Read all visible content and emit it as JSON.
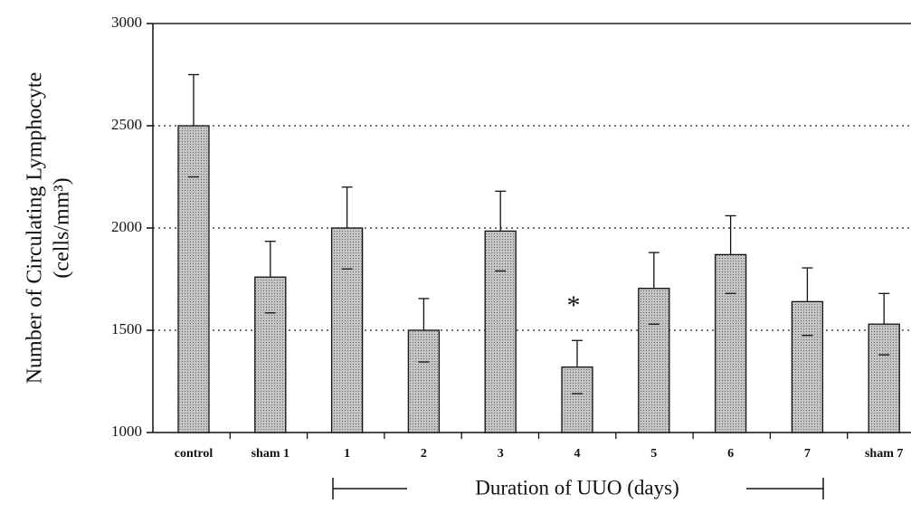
{
  "chart_data": {
    "type": "bar",
    "ylabel": [
      "Number of Circulating Lymphocyte",
      "(cells/mm³)"
    ],
    "xgroup_label": "Duration of UUO (days)",
    "annotation": "*",
    "categories": [
      "control",
      "sham 1",
      "1",
      "2",
      "3",
      "4",
      "5",
      "6",
      "7",
      "sham 7"
    ],
    "values": [
      2500,
      1760,
      2000,
      1500,
      1985,
      1320,
      1705,
      1870,
      1640,
      1530
    ],
    "errors": [
      250,
      175,
      200,
      155,
      195,
      130,
      175,
      190,
      165,
      150
    ],
    "color": "#c4c4c4",
    "ylim": [
      1000,
      3000
    ],
    "yticks": [
      1000,
      1500,
      2000,
      2500,
      3000
    ],
    "grid": true
  }
}
